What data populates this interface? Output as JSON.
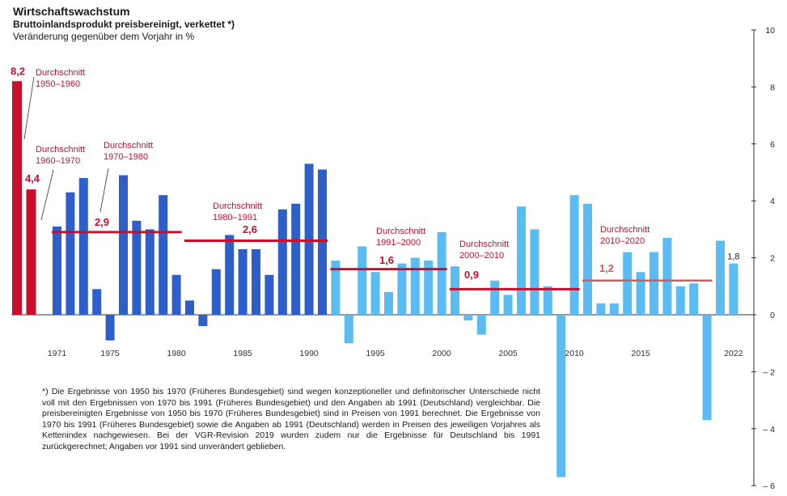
{
  "header": {
    "title": "Wirtschaftswachstum",
    "subtitle": "Bruttoinlandsprodukt preisbereinigt, verkettet *)",
    "unit_line": "Veränderung gegenüber dem Vorjahr in %"
  },
  "footnote": "*) Die Ergebnisse von 1950 bis 1970 (Früheres Bundesgebiet) sind wegen konzeptioneller und definitorischer Unterschiede nicht voll mit den Ergebnissen von 1970 bis 1991 (Früheres Bundesgebiet) und den Angaben ab 1991 (Deutschland) vergleichbar. Die preisbereinigten Ergebnisse von 1950 bis 1970 (Früheres Bundesgebiet) sind in Preisen von 1991 berechnet. Die Ergebnisse von 1970 bis 1991 (Früheres Bundesgebiet) sowie die Angaben ab 1991 (Deutschland) werden in Preisen des jeweiligen Vorjahres als Kettenindex nachgewiesen. Bei der VGR-Revision 2019 wurden zudem nur die Ergebnisse für Deutschland bis 1991 zurückgerechnet; Angaben vor 1991 sind unverändert geblieben.",
  "chart_data": {
    "type": "bar",
    "ylim": [
      -6,
      10
    ],
    "y_ticks": [
      "10",
      "8",
      "6",
      "4",
      "2",
      "0",
      "– 2",
      "– 4",
      "– 6"
    ],
    "x_tick_labels": [
      "1971",
      "1975",
      "1980",
      "1985",
      "1990",
      "1995",
      "2000",
      "2005",
      "2010",
      "2015",
      "2022"
    ],
    "colors": {
      "decade_avg": "#c8102e",
      "west": "#2e5fc9",
      "germany": "#5bbcf2",
      "avg_line": "#c8102e",
      "avg_line_light": "#c86060"
    },
    "decade_bars": [
      {
        "period": "1950–1960",
        "value": 8.2,
        "label": "8,2"
      },
      {
        "period": "1960–1970",
        "value": 4.4,
        "label": "4,4"
      }
    ],
    "years": [
      1971,
      1972,
      1973,
      1974,
      1975,
      1976,
      1977,
      1978,
      1979,
      1980,
      1981,
      1982,
      1983,
      1984,
      1985,
      1986,
      1987,
      1988,
      1989,
      1990,
      1991,
      1992,
      1993,
      1994,
      1995,
      1996,
      1997,
      1998,
      1999,
      2000,
      2001,
      2002,
      2003,
      2004,
      2005,
      2006,
      2007,
      2008,
      2009,
      2010,
      2011,
      2012,
      2013,
      2014,
      2015,
      2016,
      2017,
      2018,
      2019,
      2020,
      2021,
      2022
    ],
    "values": [
      3.1,
      4.3,
      4.8,
      0.9,
      -0.9,
      4.9,
      3.3,
      3.0,
      4.2,
      1.4,
      0.5,
      -0.4,
      1.6,
      2.8,
      2.3,
      2.3,
      1.4,
      3.7,
      3.9,
      5.3,
      5.1,
      1.9,
      -1.0,
      2.4,
      1.5,
      0.8,
      1.8,
      2.0,
      1.9,
      2.9,
      1.7,
      -0.2,
      -0.7,
      1.2,
      0.7,
      3.8,
      3.0,
      1.0,
      -5.7,
      4.2,
      3.9,
      0.4,
      0.4,
      2.2,
      1.5,
      2.2,
      2.7,
      1.0,
      1.1,
      -3.7,
      2.6,
      1.8
    ],
    "series": [
      {
        "name": "Früheres Bundesgebiet",
        "from": 1971,
        "to": 1991
      },
      {
        "name": "Deutschland",
        "from": 1992,
        "to": 2022
      }
    ],
    "last_value_label": "1,8",
    "averages": [
      {
        "label": "Durchschnitt",
        "period": "1950–1960",
        "value": 8.2
      },
      {
        "label": "Durchschnitt",
        "period": "1960–1970",
        "value": 4.4
      },
      {
        "label": "Durchschnitt",
        "period": "1970–1980",
        "value": 2.9,
        "value_label": "2,9",
        "from": 1971,
        "to": 1980
      },
      {
        "label": "Durchschnitt",
        "period": "1980–1991",
        "value": 2.6,
        "value_label": "2,6",
        "from": 1981,
        "to": 1991
      },
      {
        "label": "Durchschnitt",
        "period": "1991–2000",
        "value": 1.6,
        "value_label": "1,6",
        "from": 1992,
        "to": 2000
      },
      {
        "label": "Durchschnitt",
        "period": "2000–2010",
        "value": 0.9,
        "value_label": "0,9",
        "from": 2001,
        "to": 2010
      },
      {
        "label": "Durchschnitt",
        "period": "2010–2020",
        "value": 1.2,
        "value_label": "1,2",
        "from": 2011,
        "to": 2020
      }
    ]
  }
}
